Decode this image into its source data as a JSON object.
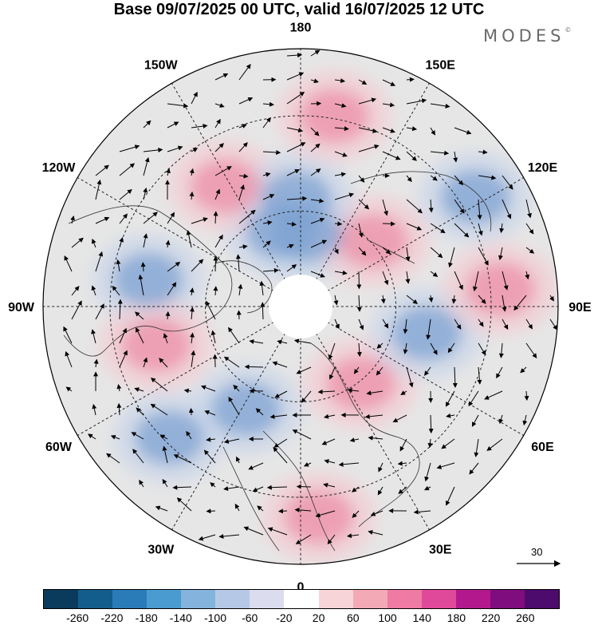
{
  "header": {
    "title": "Base 09/07/2025 00 UTC, valid 16/07/2025 12 UTC",
    "brand": "MODES",
    "brand_mark": "©"
  },
  "map": {
    "projection": "north-polar-stereographic",
    "longitude_labels": [
      "180",
      "150E",
      "120E",
      "90E",
      "60E",
      "30E",
      "0",
      "30W",
      "60W",
      "90W",
      "120W",
      "150W"
    ],
    "field_anomalies": [
      {
        "sign": "positive",
        "lon": 170,
        "colat": 0.75
      },
      {
        "sign": "negative",
        "lon": -178,
        "colat": 0.42
      },
      {
        "sign": "negative",
        "lon": 122,
        "colat": 0.8
      },
      {
        "sign": "positive",
        "lon": 132,
        "colat": 0.38
      },
      {
        "sign": "positive",
        "lon": 95,
        "colat": 0.78
      },
      {
        "sign": "negative",
        "lon": 78,
        "colat": 0.5
      },
      {
        "sign": "positive",
        "lon": 38,
        "colat": 0.38
      },
      {
        "sign": "positive",
        "lon": 5,
        "colat": 0.82
      },
      {
        "sign": "negative",
        "lon": -28,
        "colat": 0.45
      },
      {
        "sign": "negative",
        "lon": -45,
        "colat": 0.72
      },
      {
        "sign": "positive",
        "lon": -75,
        "colat": 0.58
      },
      {
        "sign": "negative",
        "lon": -100,
        "colat": 0.6
      },
      {
        "sign": "positive",
        "lon": -148,
        "colat": 0.55
      },
      {
        "sign": "negative",
        "lon": -165,
        "colat": 0.3
      },
      {
        "sign": "negative",
        "lon": 175,
        "colat": 0.28
      }
    ],
    "wind_reference": {
      "value": "30"
    }
  },
  "colorbar": {
    "ticks": [
      "-260",
      "-220",
      "-180",
      "-140",
      "-100",
      "-60",
      "-20",
      "20",
      "60",
      "100",
      "140",
      "180",
      "220",
      "260"
    ],
    "colors": [
      "#0b3b5c",
      "#135d8c",
      "#2a7cb8",
      "#4a9bd0",
      "#84b4de",
      "#b5c9e6",
      "#dcdcef",
      "#ffffff",
      "#f7d4d7",
      "#f3a9b6",
      "#ef7aa4",
      "#e0499a",
      "#b3198d",
      "#7f0d7e",
      "#4d0b6d"
    ]
  }
}
